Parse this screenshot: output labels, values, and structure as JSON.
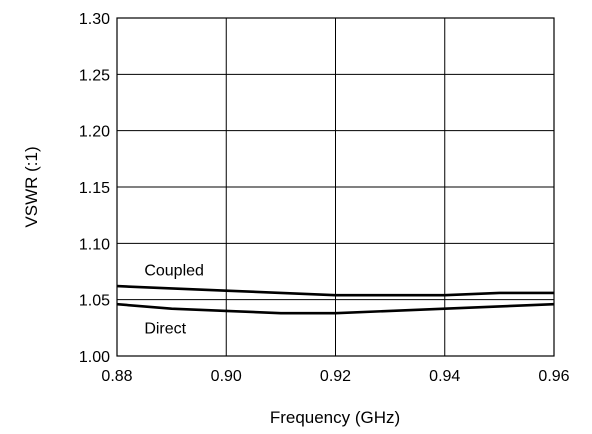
{
  "chart_data": {
    "type": "line",
    "title": "",
    "xlabel": "Frequency (GHz)",
    "ylabel": "VSWR (:1)",
    "xlim": [
      0.88,
      0.96
    ],
    "ylim": [
      1.0,
      1.3
    ],
    "xticks": [
      0.88,
      0.9,
      0.92,
      0.94,
      0.96
    ],
    "xtick_labels": [
      "0.88",
      "0.90",
      "0.92",
      "0.94",
      "0.96"
    ],
    "yticks": [
      1.0,
      1.05,
      1.1,
      1.15,
      1.2,
      1.25,
      1.3
    ],
    "ytick_labels": [
      "1.00",
      "1.05",
      "1.10",
      "1.15",
      "1.20",
      "1.25",
      "1.30"
    ],
    "grid": true,
    "series": [
      {
        "name": "Coupled",
        "x": [
          0.88,
          0.89,
          0.9,
          0.91,
          0.92,
          0.93,
          0.94,
          0.95,
          0.96
        ],
        "values": [
          1.062,
          1.06,
          1.058,
          1.056,
          1.054,
          1.054,
          1.054,
          1.056,
          1.056
        ]
      },
      {
        "name": "Direct",
        "x": [
          0.88,
          0.89,
          0.9,
          0.91,
          0.92,
          0.93,
          0.94,
          0.95,
          0.96
        ],
        "values": [
          1.046,
          1.042,
          1.04,
          1.038,
          1.038,
          1.04,
          1.042,
          1.044,
          1.046
        ]
      }
    ]
  }
}
